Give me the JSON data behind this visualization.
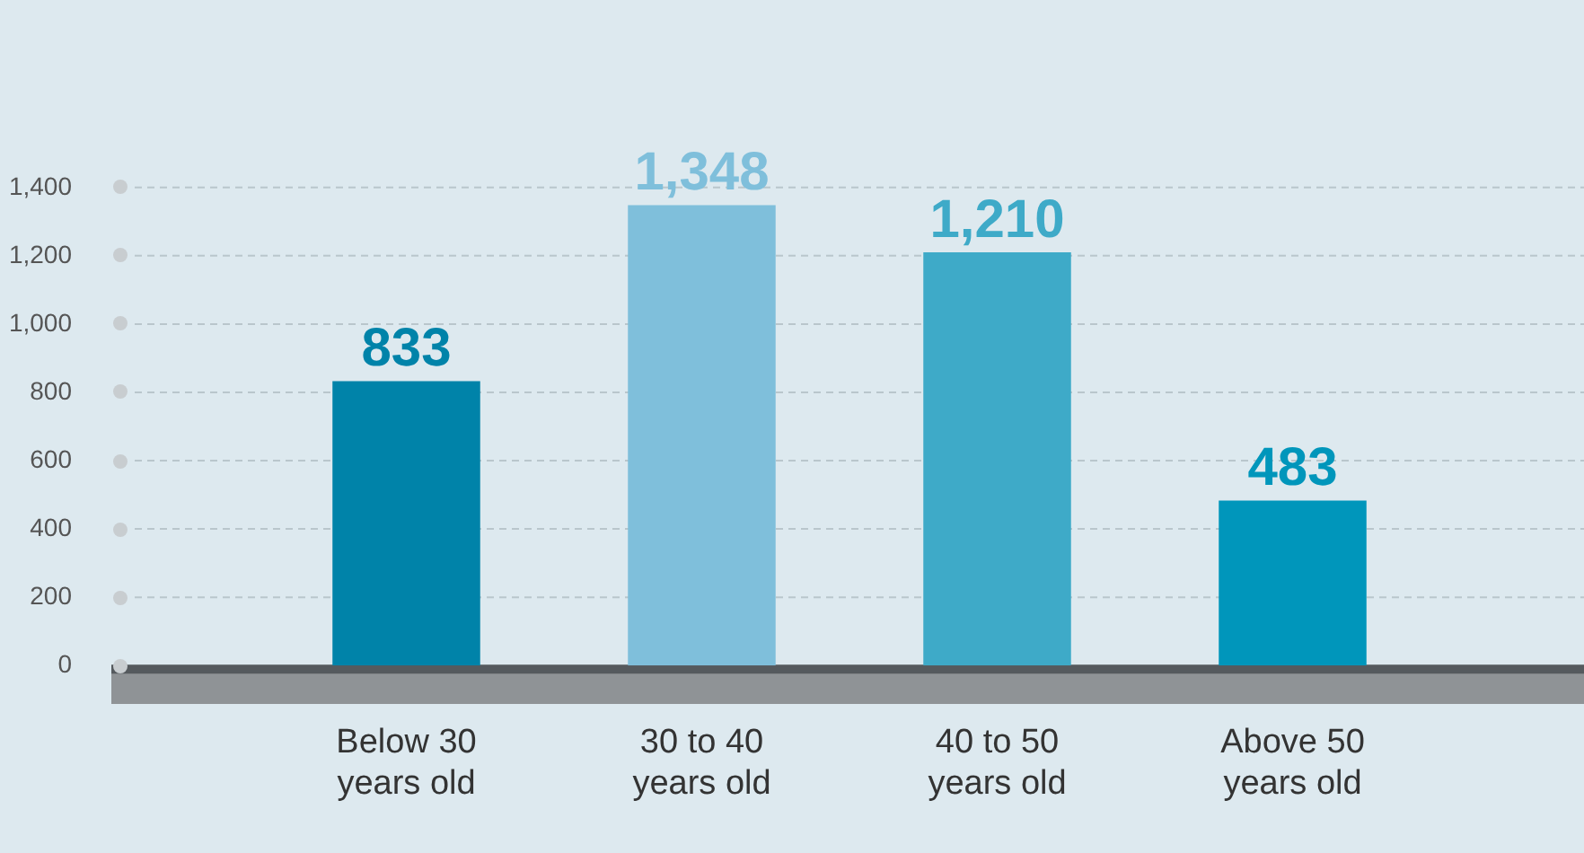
{
  "chart_data": {
    "type": "bar",
    "categories": [
      "Below 30 years old",
      "30 to 40 years old",
      "40 to 50 years old",
      "Above 50 years old"
    ],
    "values": [
      833,
      1348,
      1210,
      483
    ],
    "value_labels": [
      "833",
      "1,348",
      "1,210",
      "483"
    ],
    "colors": [
      "#0083a9",
      "#7fbfdb",
      "#3eaac8",
      "#0096bb"
    ],
    "ylim": [
      0,
      1400
    ],
    "yticks": [
      0,
      200,
      400,
      600,
      800,
      {
        "value": 1000,
        "label": "1,000"
      },
      {
        "value": 1200,
        "label": "1,200"
      },
      {
        "value": 1400,
        "label": "1,400"
      }
    ],
    "grid": "y",
    "data_labels": true,
    "legend": false
  }
}
